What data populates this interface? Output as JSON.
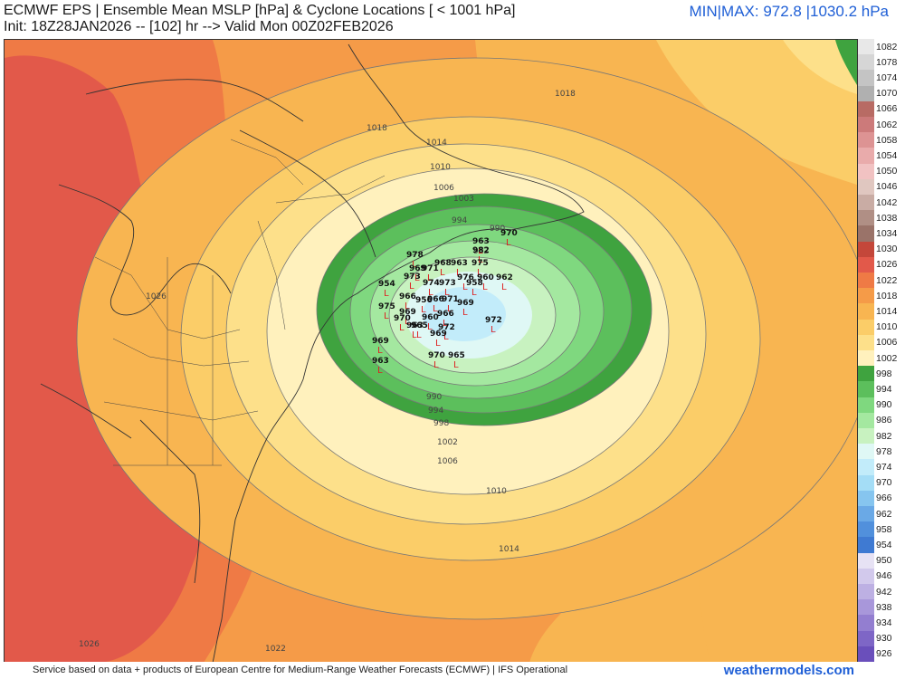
{
  "header": {
    "title_line1": "ECMWF EPS | Ensemble Mean MSLP [hPa] & Cyclone Locations [ < 1001 hPa]",
    "title_line2": "Init: 18Z28JAN2026 -- [102] hr --> Valid Mon 00Z02FEB2026",
    "minmax": "MIN|MAX: 972.8 |1030.2 hPa"
  },
  "footer": {
    "credit": "Service based on data + products of European Centre for Medium-Range Weather Forecasts (ECMWF) | IFS Operational",
    "brand": "weathermodels.com"
  },
  "colorbar": {
    "levels": [
      {
        "label": "1082",
        "color": "#e8e8e8"
      },
      {
        "label": "1078",
        "color": "#d6d6d6"
      },
      {
        "label": "1074",
        "color": "#c4c4c4"
      },
      {
        "label": "1070",
        "color": "#b0b0b0"
      },
      {
        "label": "1066",
        "color": "#b86b64"
      },
      {
        "label": "1062",
        "color": "#cc7a7a"
      },
      {
        "label": "1058",
        "color": "#dd9393"
      },
      {
        "label": "1054",
        "color": "#e9abab"
      },
      {
        "label": "1050",
        "color": "#f1c2c2"
      },
      {
        "label": "1046",
        "color": "#e0c7c0"
      },
      {
        "label": "1042",
        "color": "#c9aca4"
      },
      {
        "label": "1038",
        "color": "#b08f85"
      },
      {
        "label": "1034",
        "color": "#9a7369"
      },
      {
        "label": "1030",
        "color": "#c4473a"
      },
      {
        "label": "1026",
        "color": "#e2594a"
      },
      {
        "label": "1022",
        "color": "#ef7a45"
      },
      {
        "label": "1018",
        "color": "#f59b48"
      },
      {
        "label": "1014",
        "color": "#f8b551"
      },
      {
        "label": "1010",
        "color": "#fbcd68"
      },
      {
        "label": "1006",
        "color": "#fde08a"
      },
      {
        "label": "1002",
        "color": "#fff1bd"
      },
      {
        "label": "998",
        "color": "#3fa33f"
      },
      {
        "label": "994",
        "color": "#5cbf5c"
      },
      {
        "label": "990",
        "color": "#7fd87f"
      },
      {
        "label": "986",
        "color": "#a4e8a0"
      },
      {
        "label": "982",
        "color": "#c8f2c0"
      },
      {
        "label": "978",
        "color": "#dff8f5"
      },
      {
        "label": "974",
        "color": "#c2ecfa"
      },
      {
        "label": "970",
        "color": "#a4ddf6"
      },
      {
        "label": "966",
        "color": "#86c5ef"
      },
      {
        "label": "962",
        "color": "#6aa9e6"
      },
      {
        "label": "958",
        "color": "#5190dc"
      },
      {
        "label": "954",
        "color": "#3f7ad2"
      },
      {
        "label": "950",
        "color": "#e7e2f4"
      },
      {
        "label": "946",
        "color": "#d2c9ec"
      },
      {
        "label": "942",
        "color": "#bdb0e3"
      },
      {
        "label": "938",
        "color": "#a897da"
      },
      {
        "label": "934",
        "color": "#937ed0"
      },
      {
        "label": "930",
        "color": "#7e66c6"
      },
      {
        "label": "926",
        "color": "#6a4fbb"
      }
    ]
  },
  "map": {
    "isobar_labels": [
      "1018",
      "1018",
      "1014",
      "1010",
      "1006",
      "1003",
      "994",
      "990",
      "982",
      "990",
      "994",
      "998",
      "1002",
      "1006",
      "1010",
      "1014",
      "1026",
      "1026",
      "1022"
    ],
    "cyclones": [
      {
        "label": "970"
      },
      {
        "label": "963"
      },
      {
        "label": "982"
      },
      {
        "label": "978"
      },
      {
        "label": "969"
      },
      {
        "label": "971"
      },
      {
        "label": "968"
      },
      {
        "label": "963"
      },
      {
        "label": "975"
      },
      {
        "label": "960"
      },
      {
        "label": "962"
      },
      {
        "label": "973"
      },
      {
        "label": "974"
      },
      {
        "label": "973"
      },
      {
        "label": "976"
      },
      {
        "label": "958"
      },
      {
        "label": "954"
      },
      {
        "label": "966"
      },
      {
        "label": "956"
      },
      {
        "label": "966"
      },
      {
        "label": "971"
      },
      {
        "label": "969"
      },
      {
        "label": "975"
      },
      {
        "label": "969"
      },
      {
        "label": "960"
      },
      {
        "label": "966"
      },
      {
        "label": "972"
      },
      {
        "label": "970"
      },
      {
        "label": "963"
      },
      {
        "label": "965"
      },
      {
        "label": "969"
      },
      {
        "label": "972"
      },
      {
        "label": "969"
      },
      {
        "label": "963"
      },
      {
        "label": "970"
      },
      {
        "label": "965"
      }
    ]
  }
}
